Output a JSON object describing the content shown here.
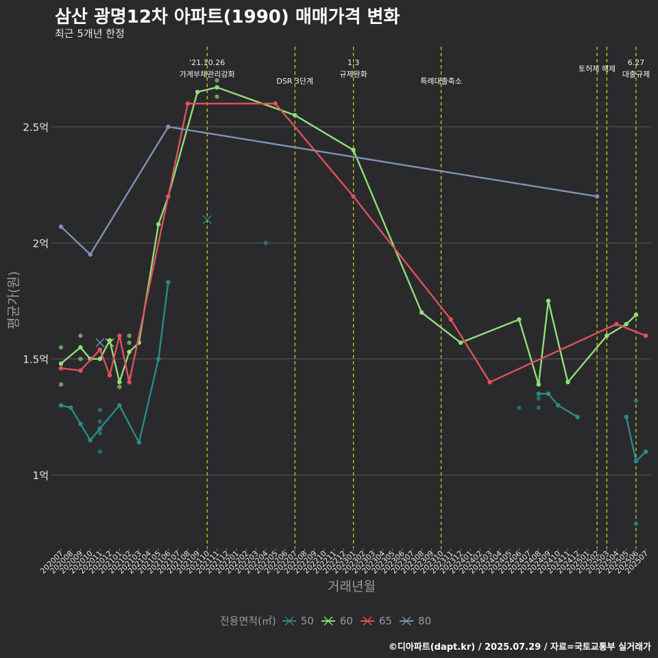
{
  "title": "삼산 광명12차 아파트(1990) 매매가격 변화",
  "subtitle": "최근 5개년 한정",
  "footer": "©디아파트(dapt.kr) / 2025.07.29 / 자료=국토교통부 실거래가",
  "legend": {
    "title": "전용면적(㎡)"
  },
  "chart_data": {
    "type": "line",
    "xlabel": "거래년월",
    "ylabel": "평균가(원)",
    "x": [
      "202007",
      "202008",
      "202009",
      "202010",
      "202011",
      "202012",
      "202101",
      "202102",
      "202103",
      "202104",
      "202105",
      "202106",
      "202107",
      "202108",
      "202109",
      "202110",
      "202111",
      "202112",
      "202201",
      "202202",
      "202203",
      "202204",
      "202205",
      "202206",
      "202207",
      "202208",
      "202209",
      "202210",
      "202211",
      "202212",
      "202301",
      "202302",
      "202303",
      "202304",
      "202305",
      "202306",
      "202307",
      "202308",
      "202309",
      "202310",
      "202311",
      "202312",
      "202401",
      "202402",
      "202403",
      "202404",
      "202405",
      "202406",
      "202407",
      "202408",
      "202409",
      "202410",
      "202411",
      "202412",
      "202501",
      "202502",
      "202503",
      "202504",
      "202505",
      "202506",
      "202507"
    ],
    "y_ticks": [
      {
        "value": 1.0,
        "label": "1억"
      },
      {
        "value": 1.5,
        "label": "1.5억"
      },
      {
        "value": 2.0,
        "label": "2억"
      },
      {
        "value": 2.5,
        "label": "2.5억"
      }
    ],
    "ylim": [
      0.7,
      2.8
    ],
    "grid": true,
    "legend_position": "bottom",
    "series": [
      {
        "name": "50",
        "color": "#2a8c8a",
        "points": [
          [
            "202007",
            1.3
          ],
          [
            "202008",
            1.29
          ],
          [
            "202009",
            1.22
          ],
          [
            "202010",
            1.15
          ],
          [
            "202011",
            1.2
          ],
          [
            "202101",
            1.3
          ],
          [
            "202103",
            1.14
          ],
          [
            "202105",
            1.5
          ],
          [
            "202106",
            1.83
          ],
          [
            "202408",
            1.35
          ],
          [
            "202409",
            1.35
          ],
          [
            "202410",
            1.3
          ],
          [
            "202412",
            1.25
          ],
          [
            "202505",
            1.25
          ],
          [
            "202506",
            1.06
          ],
          [
            "202507",
            1.1
          ]
        ],
        "breaks_after": [
          "202106",
          "202412"
        ],
        "dots": [
          [
            "202011",
            1.28
          ],
          [
            "202011",
            1.23
          ],
          [
            "202011",
            1.18
          ],
          [
            "202011",
            1.1
          ],
          [
            "202204",
            2.0
          ],
          [
            "202406",
            1.29
          ],
          [
            "202408",
            1.4
          ],
          [
            "202408",
            1.39
          ],
          [
            "202408",
            1.33
          ],
          [
            "202408",
            1.29
          ],
          [
            "202506",
            1.32
          ],
          [
            "202506",
            0.79
          ]
        ],
        "crosses": [
          [
            "202110",
            2.1
          ]
        ]
      },
      {
        "name": "60",
        "color": "#90e07a",
        "points": [
          [
            "202007",
            1.48
          ],
          [
            "202009",
            1.55
          ],
          [
            "202010",
            1.5
          ],
          [
            "202011",
            1.5
          ],
          [
            "202012",
            1.58
          ],
          [
            "202101",
            1.4
          ],
          [
            "202102",
            1.53
          ],
          [
            "202103",
            1.57
          ],
          [
            "202105",
            2.08
          ],
          [
            "202106",
            2.2
          ],
          [
            "202109",
            2.65
          ],
          [
            "202111",
            2.67
          ],
          [
            "202207",
            2.55
          ],
          [
            "202301",
            2.4
          ],
          [
            "202308",
            1.7
          ],
          [
            "202312",
            1.57
          ],
          [
            "202406",
            1.67
          ],
          [
            "202408",
            1.39
          ],
          [
            "202409",
            1.75
          ],
          [
            "202411",
            1.4
          ],
          [
            "202503",
            1.6
          ],
          [
            "202505",
            1.65
          ],
          [
            "202506",
            1.69
          ]
        ],
        "dots": [
          [
            "202007",
            1.55
          ],
          [
            "202007",
            1.39
          ],
          [
            "202009",
            1.6
          ],
          [
            "202009",
            1.5
          ],
          [
            "202101",
            1.38
          ],
          [
            "202102",
            1.6
          ],
          [
            "202102",
            1.57
          ],
          [
            "202111",
            2.7
          ],
          [
            "202111",
            2.63
          ]
        ],
        "crosses": [
          [
            "202012",
            1.57
          ]
        ]
      },
      {
        "name": "65",
        "color": "#e0525b",
        "points": [
          [
            "202007",
            1.46
          ],
          [
            "202009",
            1.45
          ],
          [
            "202011",
            1.54
          ],
          [
            "202012",
            1.43
          ],
          [
            "202101",
            1.6
          ],
          [
            "202102",
            1.4
          ],
          [
            "202106",
            2.2
          ],
          [
            "202108",
            2.6
          ],
          [
            "202205",
            2.6
          ],
          [
            "202301",
            2.2
          ],
          [
            "202311",
            1.67
          ],
          [
            "202403",
            1.4
          ],
          [
            "202504",
            1.65
          ],
          [
            "202507",
            1.6
          ]
        ],
        "dots": [
          [
            "202102",
            1.42
          ]
        ],
        "crosses": []
      },
      {
        "name": "80",
        "color": "#7f93b8",
        "points": [
          [
            "202007",
            2.07
          ],
          [
            "202010",
            1.95
          ],
          [
            "202106",
            2.5
          ],
          [
            "202502",
            2.2
          ]
        ],
        "dots": [],
        "crosses": [
          [
            "202011",
            1.57
          ]
        ]
      }
    ],
    "annotations": [
      {
        "x": "202110",
        "lines": [
          "'21.10.26",
          "가계부채관리강화"
        ],
        "level": 0
      },
      {
        "x": "202207",
        "lines": [
          "DSR 3단계"
        ],
        "level": 1
      },
      {
        "x": "202301",
        "lines": [
          "1.3",
          "규제완화"
        ],
        "level": 0
      },
      {
        "x": "202310",
        "lines": [
          "특례대출축소"
        ],
        "level": 1
      },
      {
        "x": "202502",
        "lines": [
          "토허제 해제"
        ],
        "level": 0
      },
      {
        "x": "202503",
        "lines": [],
        "level": 0
      },
      {
        "x": "202506",
        "lines": [
          "6.27",
          "대출규제"
        ],
        "level": 0
      }
    ]
  }
}
